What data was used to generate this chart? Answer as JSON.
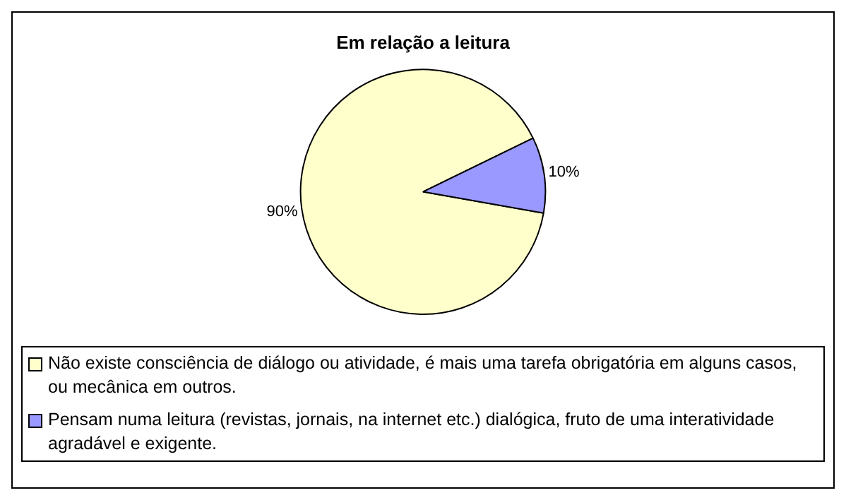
{
  "chart_data": {
    "type": "pie",
    "title": "Em relação a leitura",
    "categories": [
      "Não existe consciência de diálogo ou atividade, é mais uma tarefa obrigatória em alguns casos, ou mecânica em outros.",
      "Pensam numa leitura (revistas, jornais, na internet etc.) dialógica, fruto de uma interatividade agradável e exigente."
    ],
    "values": [
      90,
      10
    ],
    "colors": [
      "#ffffcc",
      "#9999ff"
    ],
    "value_labels": [
      "90%",
      "10%"
    ],
    "legend": "bottom"
  }
}
